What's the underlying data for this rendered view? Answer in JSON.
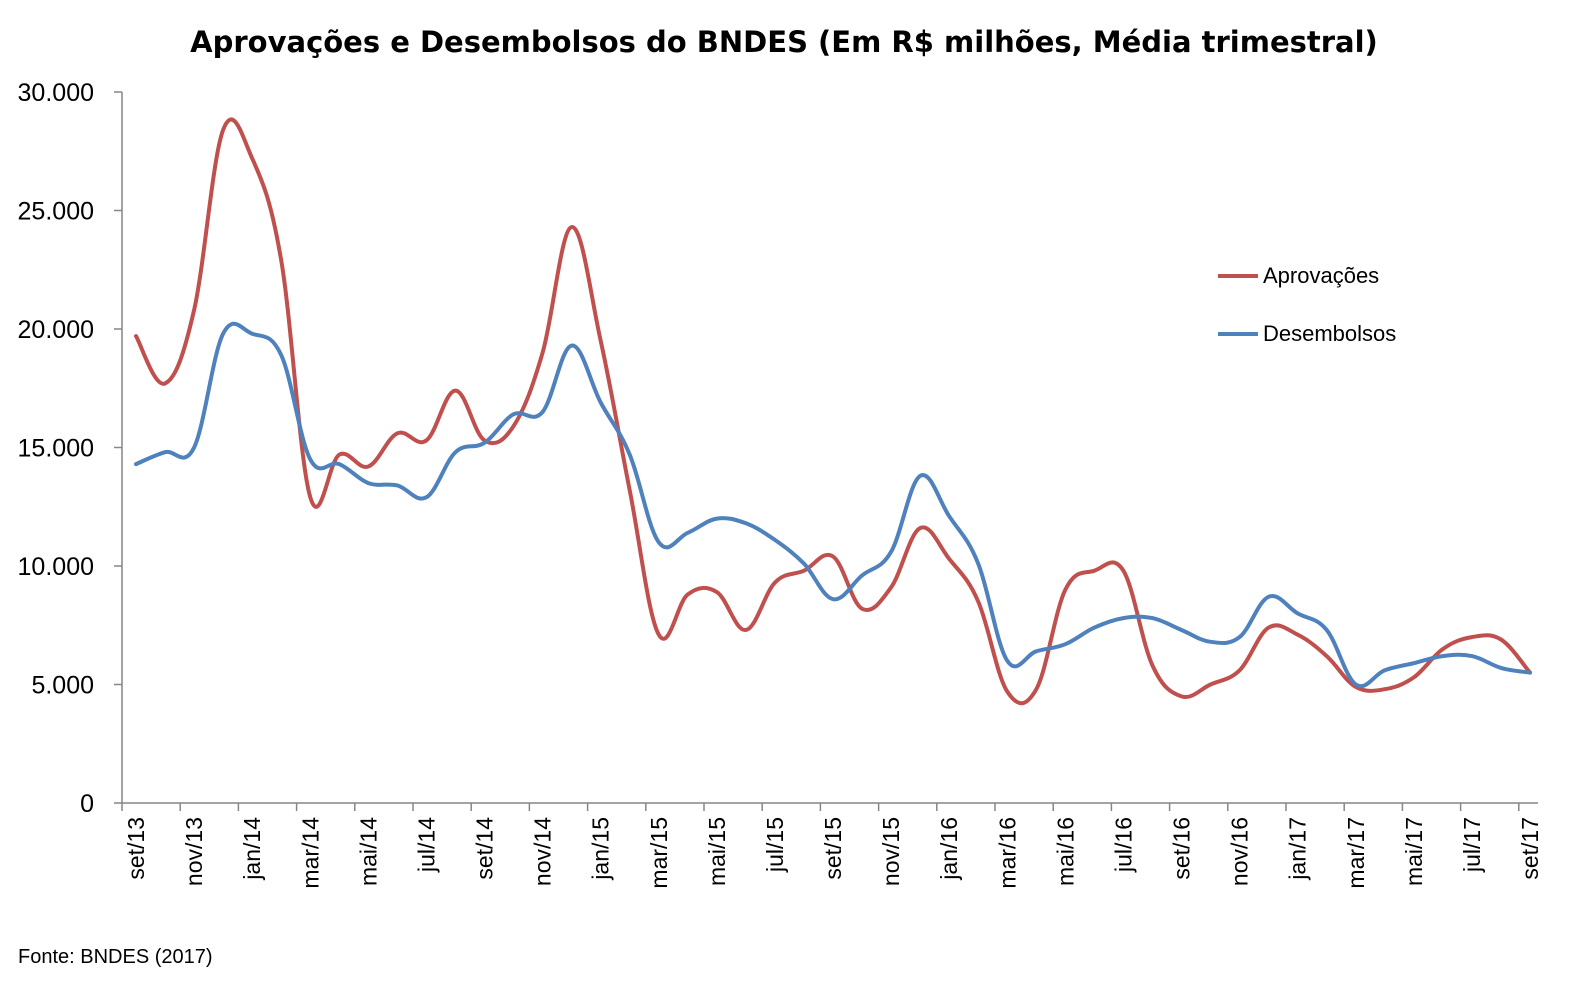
{
  "chart_data": {
    "type": "line",
    "title": "Aprovações e Desembolsos do BNDES (Em R$ milhões, Média trimestral)",
    "xlabel": "",
    "ylabel": "",
    "ylim": [
      0,
      30000
    ],
    "yticks": [
      0,
      5000,
      10000,
      15000,
      20000,
      25000,
      30000
    ],
    "ytick_labels": [
      "0",
      "5.000",
      "10.000",
      "15.000",
      "20.000",
      "25.000",
      "30.000"
    ],
    "x": [
      "set/13",
      "out/13",
      "nov/13",
      "dez/13",
      "jan/14",
      "fev/14",
      "mar/14",
      "abr/14",
      "mai/14",
      "jun/14",
      "jul/14",
      "ago/14",
      "set/14",
      "out/14",
      "nov/14",
      "dez/14",
      "jan/15",
      "fev/15",
      "mar/15",
      "abr/15",
      "mai/15",
      "jun/15",
      "jul/15",
      "ago/15",
      "set/15",
      "out/15",
      "nov/15",
      "dez/15",
      "jan/16",
      "fev/16",
      "mar/16",
      "abr/16",
      "mai/16",
      "jun/16",
      "jul/16",
      "ago/16",
      "set/16",
      "out/16",
      "nov/16",
      "dez/16",
      "jan/17",
      "fev/17",
      "mar/17",
      "abr/17",
      "mai/17",
      "jun/17",
      "jul/17",
      "ago/17",
      "set/17"
    ],
    "tick_labels": [
      "set/13",
      "nov/13",
      "jan/14",
      "mar/14",
      "mai/14",
      "jul/14",
      "set/14",
      "nov/14",
      "jan/15",
      "mar/15",
      "mai/15",
      "jul/15",
      "set/15",
      "nov/15",
      "jan/16",
      "mar/16",
      "mai/16",
      "jul/16",
      "set/16",
      "nov/16",
      "jan/17",
      "mar/17",
      "mai/17",
      "jul/17",
      "set/17"
    ],
    "series": [
      {
        "name": "Aprovações",
        "color": "#C0504D",
        "values": [
          19700,
          17700,
          20800,
          28400,
          27200,
          22900,
          12900,
          14700,
          14200,
          15600,
          15300,
          17400,
          15300,
          15900,
          19000,
          24300,
          19500,
          13200,
          7100,
          8800,
          8900,
          7300,
          9300,
          9800,
          10400,
          8200,
          9100,
          11600,
          10300,
          8500,
          4700,
          4800,
          9000,
          9800,
          9800,
          5800,
          4500,
          5000,
          5600,
          7400,
          7100,
          6200,
          4900,
          4800,
          5300,
          6500,
          7000,
          6900,
          5500
        ]
      },
      {
        "name": "Desembolsos",
        "color": "#4F81BD",
        "values": [
          14300,
          14800,
          15000,
          19800,
          19800,
          18900,
          14500,
          14300,
          13500,
          13400,
          12900,
          14800,
          15200,
          16400,
          16500,
          19300,
          16900,
          14700,
          11000,
          11400,
          12000,
          11800,
          11100,
          10100,
          8600,
          9600,
          10600,
          13800,
          12100,
          10100,
          6000,
          6400,
          6700,
          7400,
          7800,
          7800,
          7300,
          6800,
          7000,
          8700,
          8000,
          7300,
          5000,
          5600,
          5900,
          6200,
          6200,
          5700,
          5500
        ]
      }
    ],
    "legend": "right",
    "grid": false
  },
  "source_note": "Fonte: BNDES (2017)"
}
